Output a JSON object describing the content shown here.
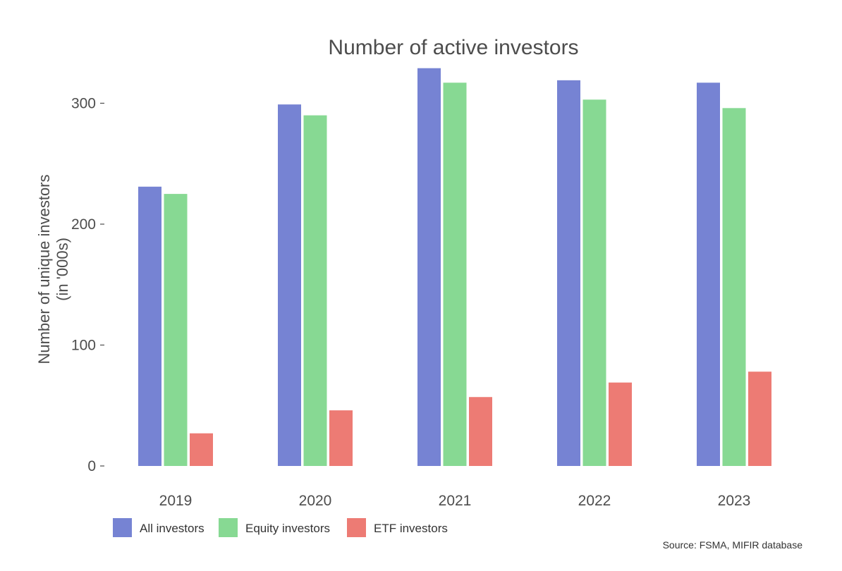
{
  "chart_data": {
    "type": "bar",
    "title": "Number of active investors",
    "ylabel_lines": [
      "Number of unique investors",
      "(in '000s)"
    ],
    "xlabel": "",
    "categories": [
      "2019",
      "2020",
      "2021",
      "2022",
      "2023"
    ],
    "ylim": [
      0,
      330
    ],
    "yticks": [
      0,
      100,
      200,
      300
    ],
    "ytick_labels": [
      "0",
      "100",
      "200",
      "300"
    ],
    "grid": false,
    "legend_position": "bottom-left",
    "series": [
      {
        "name": "All investors",
        "color": "#7683d3",
        "values": [
          231,
          299,
          329,
          319,
          317
        ]
      },
      {
        "name": "Equity investors",
        "color": "#87d993",
        "values": [
          225,
          290,
          317,
          303,
          296
        ]
      },
      {
        "name": "ETF investors",
        "color": "#ed7b74",
        "values": [
          27,
          46,
          57,
          69,
          78
        ]
      }
    ],
    "caption": "Source: FSMA, MIFIR database"
  }
}
